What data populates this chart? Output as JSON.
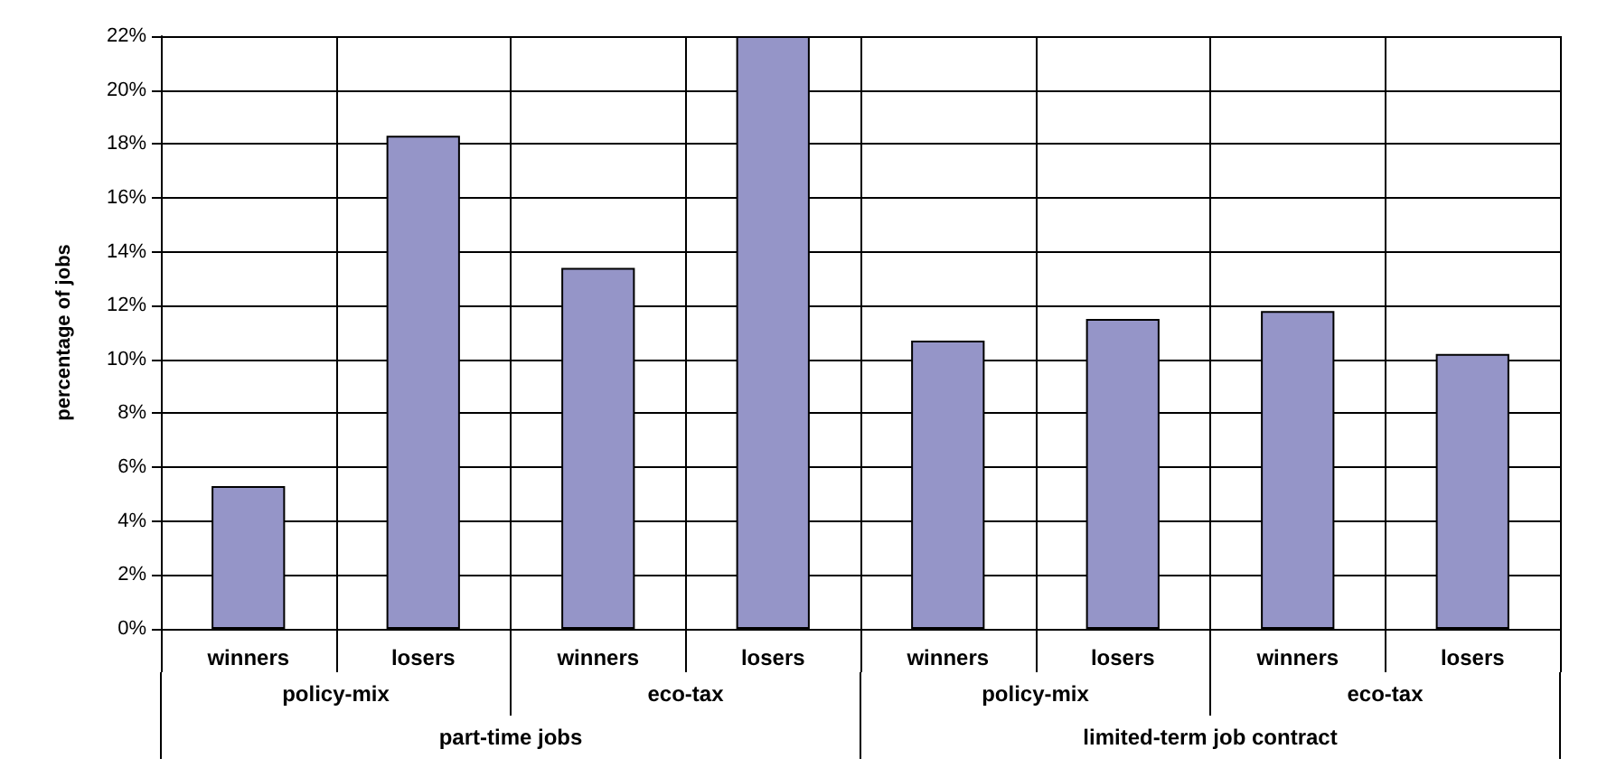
{
  "chart_data": {
    "type": "bar",
    "ylabel": "percentage of jobs",
    "categories": [
      "winners",
      "losers",
      "winners",
      "losers",
      "winners",
      "losers",
      "winners",
      "losers"
    ],
    "values": [
      5.3,
      18.3,
      13.4,
      22.0,
      10.7,
      11.5,
      11.8,
      10.2
    ],
    "color": "#9595c8",
    "ylim": [
      0,
      22
    ],
    "yticks": [
      {
        "value": 0,
        "label": "0%"
      },
      {
        "value": 2,
        "label": "2%"
      },
      {
        "value": 4,
        "label": "4%"
      },
      {
        "value": 6,
        "label": "6%"
      },
      {
        "value": 8,
        "label": "8%"
      },
      {
        "value": 10,
        "label": "10%"
      },
      {
        "value": 12,
        "label": "12%"
      },
      {
        "value": 14,
        "label": "14%"
      },
      {
        "value": 16,
        "label": "16%"
      },
      {
        "value": 18,
        "label": "18%"
      },
      {
        "value": 20,
        "label": "20%"
      },
      {
        "value": 22,
        "label": "22%"
      }
    ],
    "annotations": [
      "policy-mix",
      "eco-tax",
      "policy-mix",
      "eco-tax",
      "part-time jobs",
      "limited-term job contract"
    ],
    "grid": true
  }
}
